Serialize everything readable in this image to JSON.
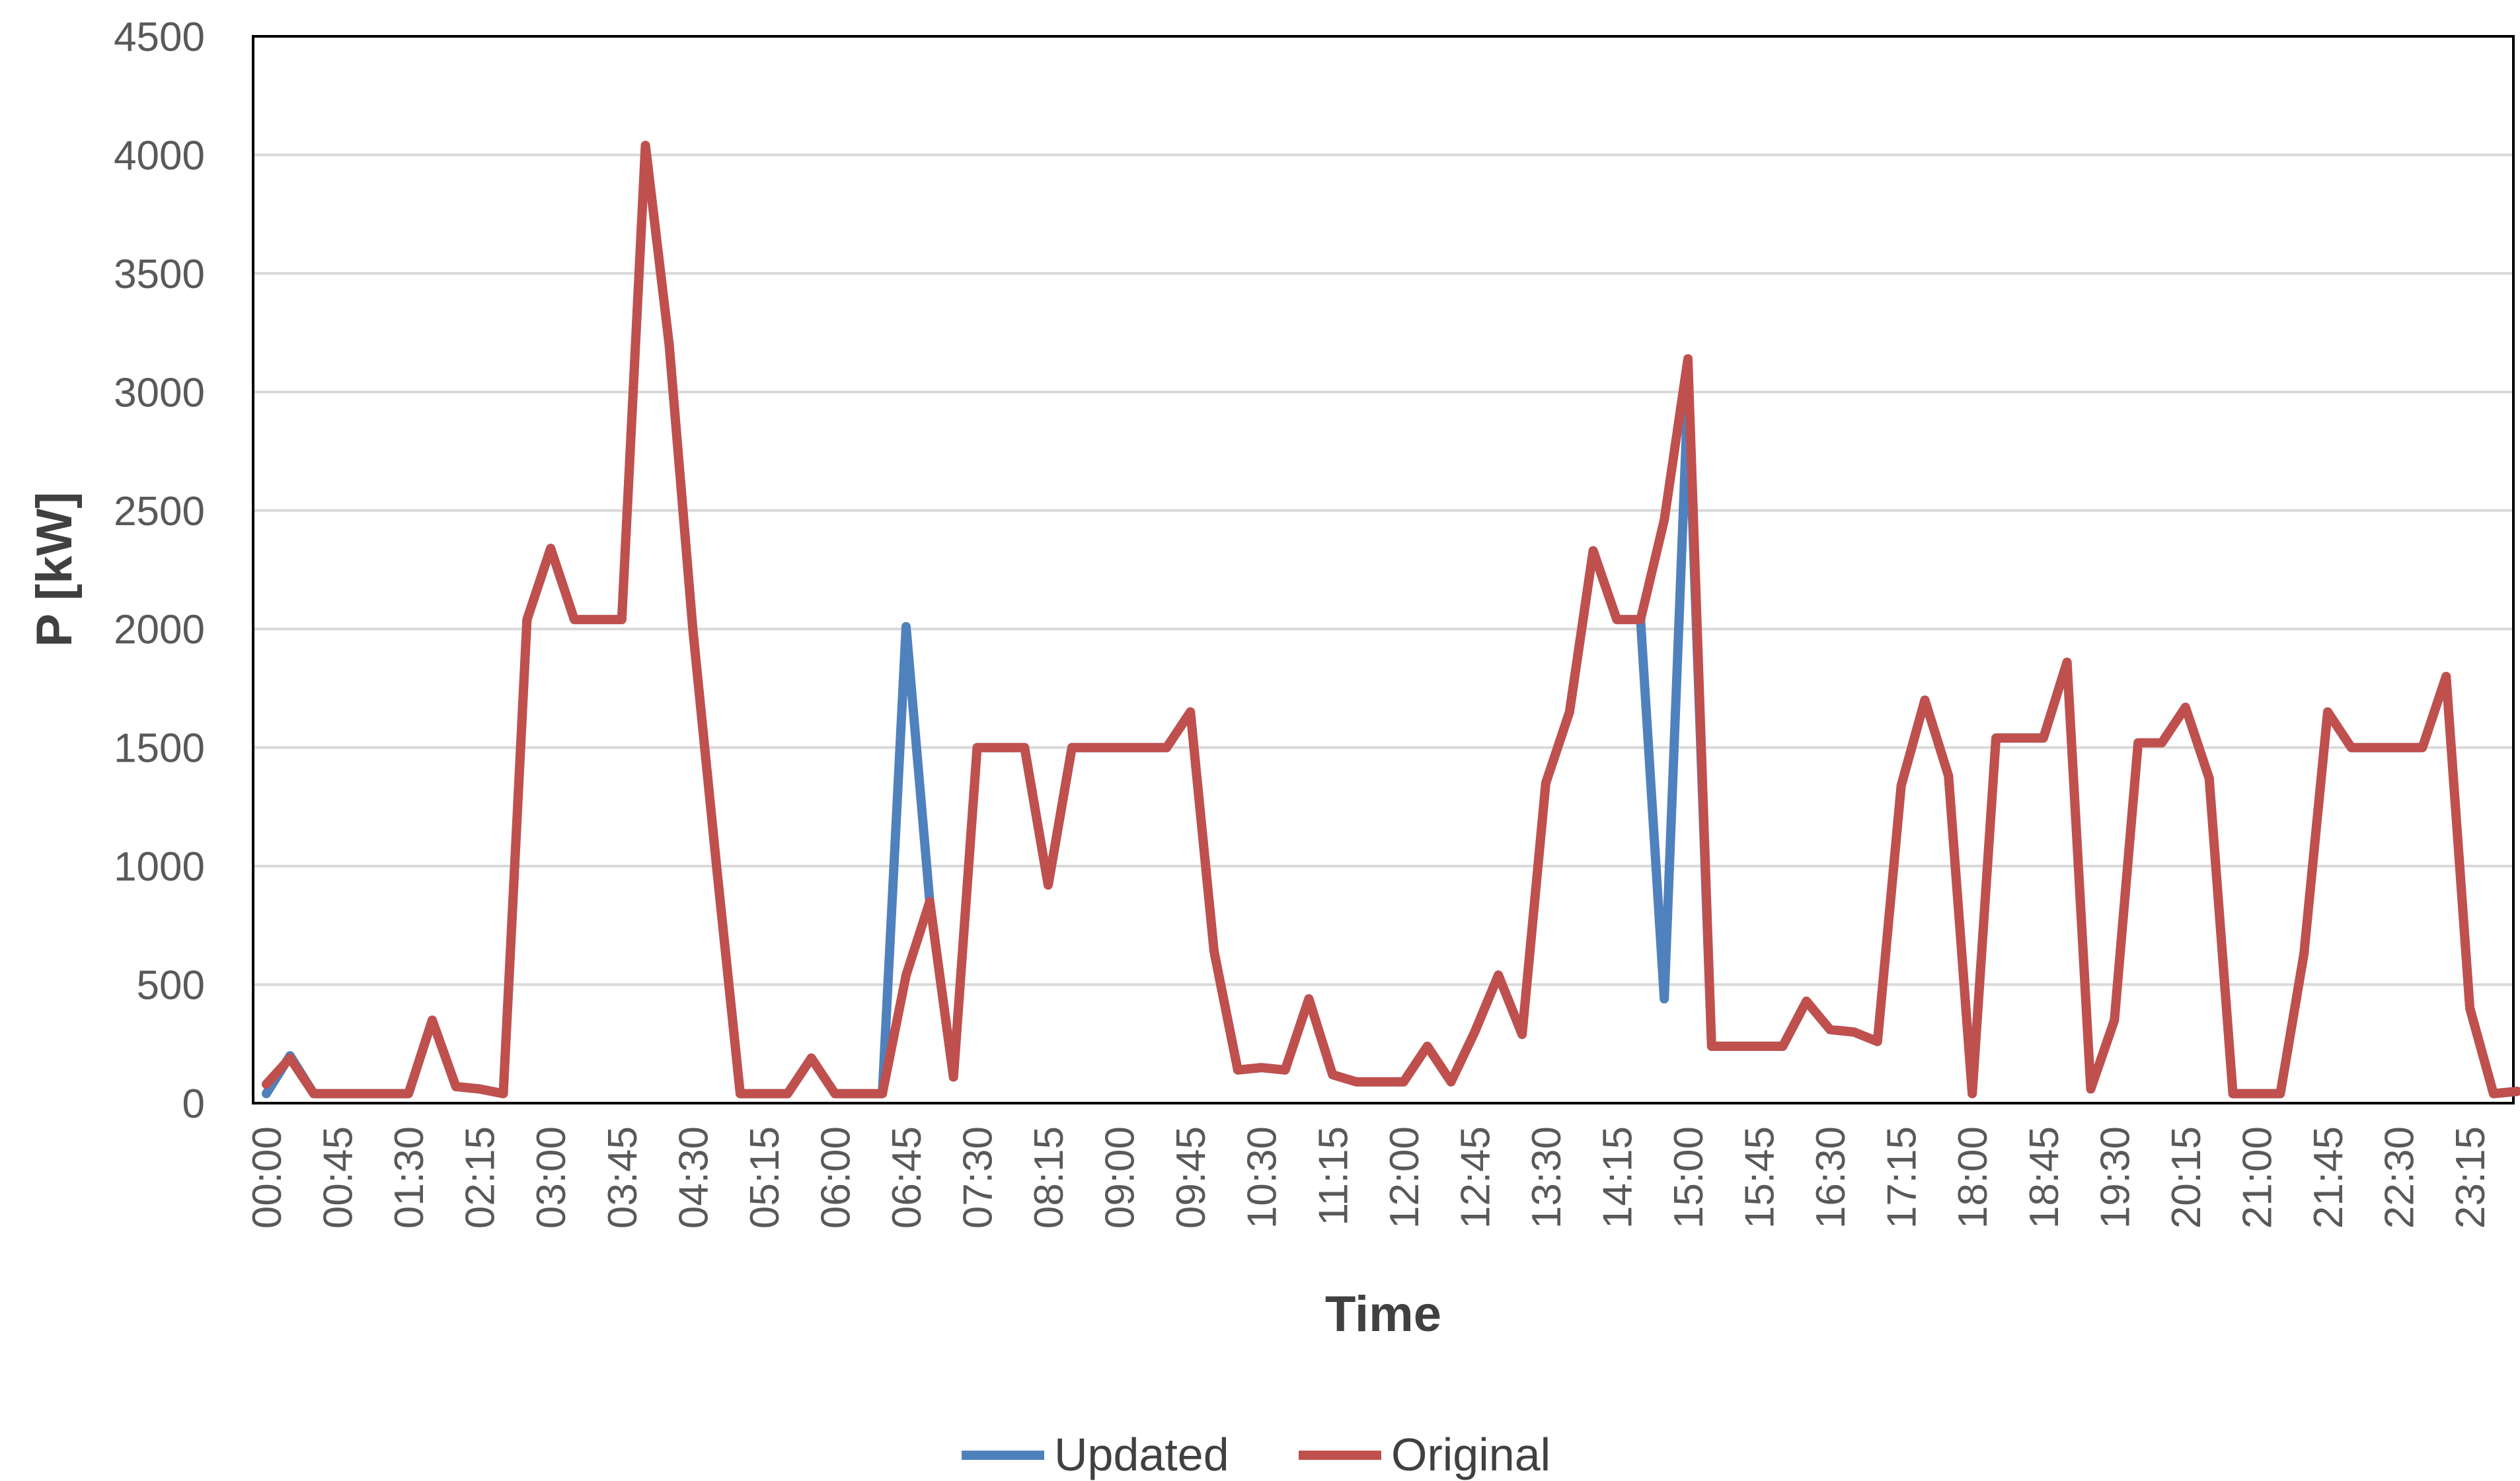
{
  "chart_data": {
    "type": "line",
    "xlabel": "Time",
    "ylabel": "P [kW]",
    "ylim": [
      0,
      4500
    ],
    "yticks": [
      0,
      500,
      1000,
      1500,
      2000,
      2500,
      3000,
      3500,
      4000,
      4500
    ],
    "grid": true,
    "legend_position": "bottom-center",
    "x": [
      "00:00",
      "00:15",
      "00:30",
      "00:45",
      "01:00",
      "01:15",
      "01:30",
      "01:45",
      "02:00",
      "02:15",
      "02:30",
      "02:45",
      "03:00",
      "03:15",
      "03:30",
      "03:45",
      "04:00",
      "04:15",
      "04:30",
      "04:45",
      "05:00",
      "05:15",
      "05:30",
      "05:45",
      "06:00",
      "06:15",
      "06:30",
      "06:45",
      "07:00",
      "07:15",
      "07:30",
      "07:45",
      "08:00",
      "08:15",
      "08:30",
      "08:45",
      "09:00",
      "09:15",
      "09:30",
      "09:45",
      "10:00",
      "10:15",
      "10:30",
      "10:45",
      "11:00",
      "11:15",
      "11:30",
      "11:45",
      "12:00",
      "12:15",
      "12:30",
      "12:45",
      "13:00",
      "13:15",
      "13:30",
      "13:45",
      "14:00",
      "14:15",
      "14:30",
      "14:45",
      "15:00",
      "15:15",
      "15:30",
      "15:45",
      "16:00",
      "16:15",
      "16:30",
      "16:45",
      "17:00",
      "17:15",
      "17:30",
      "17:45",
      "18:00",
      "18:15",
      "18:30",
      "18:45",
      "19:00",
      "19:15",
      "19:30",
      "19:45",
      "20:00",
      "20:15",
      "20:30",
      "20:45",
      "21:00",
      "21:15",
      "21:30",
      "21:45",
      "22:00",
      "22:15",
      "22:30",
      "22:45",
      "23:00",
      "23:15",
      "23:30",
      "23:45"
    ],
    "x_tick_labels": [
      "00:00",
      "00:45",
      "01:30",
      "02:15",
      "03:00",
      "03:45",
      "04:30",
      "05:15",
      "06:00",
      "06:45",
      "07:30",
      "08:15",
      "09:00",
      "09:45",
      "10:30",
      "11:15",
      "12:00",
      "12:45",
      "13:30",
      "14:15",
      "15:00",
      "15:45",
      "16:30",
      "17:15",
      "18:00",
      "18:45",
      "19:30",
      "20:15",
      "21:00",
      "21:45",
      "22:30",
      "23:15"
    ],
    "series": [
      {
        "name": "Updated",
        "color": "#4f81bd",
        "values": [
          40,
          200,
          40,
          40,
          40,
          40,
          40,
          350,
          70,
          60,
          40,
          2040,
          2340,
          2040,
          2040,
          2040,
          4040,
          3200,
          2000,
          1000,
          40,
          40,
          40,
          190,
          40,
          40,
          40,
          2010,
          850,
          110,
          1500,
          1500,
          1500,
          920,
          1500,
          1500,
          1500,
          1500,
          1500,
          1650,
          640,
          140,
          150,
          140,
          440,
          120,
          90,
          90,
          90,
          240,
          90,
          300,
          540,
          290,
          1350,
          1650,
          2330,
          2040,
          2040,
          440,
          3000,
          240,
          240,
          240,
          240,
          430,
          310,
          300,
          260,
          1340,
          1700,
          1380,
          40,
          1540,
          1540,
          1540,
          1860,
          60,
          350,
          1520,
          1520,
          1670,
          1370,
          40,
          40,
          40,
          630,
          1650,
          1500,
          1500,
          1500,
          1500,
          1800,
          400,
          40,
          50
        ]
      },
      {
        "name": "Original",
        "color": "#c0504d",
        "values": [
          80,
          190,
          40,
          40,
          40,
          40,
          40,
          350,
          70,
          60,
          40,
          2040,
          2340,
          2040,
          2040,
          2040,
          4040,
          3200,
          2000,
          1000,
          40,
          40,
          40,
          190,
          40,
          40,
          40,
          540,
          850,
          110,
          1500,
          1500,
          1500,
          920,
          1500,
          1500,
          1500,
          1500,
          1500,
          1650,
          640,
          140,
          150,
          140,
          440,
          120,
          90,
          90,
          90,
          240,
          90,
          300,
          540,
          290,
          1350,
          1650,
          2330,
          2040,
          2040,
          2460,
          3140,
          240,
          240,
          240,
          240,
          430,
          310,
          300,
          260,
          1340,
          1700,
          1380,
          40,
          1540,
          1540,
          1540,
          1860,
          60,
          350,
          1520,
          1520,
          1670,
          1370,
          40,
          40,
          40,
          630,
          1650,
          1500,
          1500,
          1500,
          1500,
          1800,
          400,
          40,
          50
        ]
      }
    ]
  }
}
